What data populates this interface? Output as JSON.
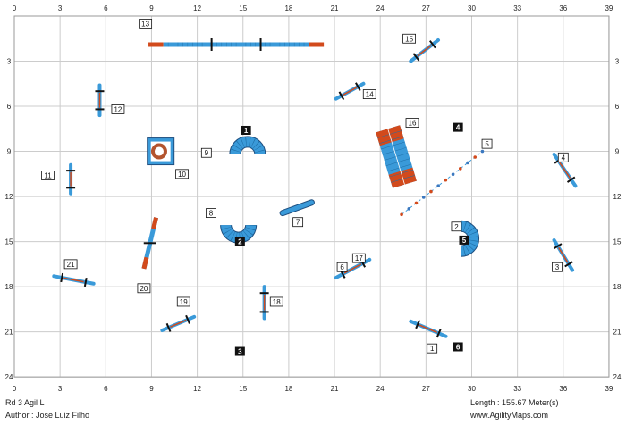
{
  "course": {
    "title": "Rd 3 Agil L",
    "author": "Author : Jose Luiz Filho",
    "length": "Length : 155.67 Meter(s)",
    "website": "www.AgilityMaps.com"
  },
  "axes": {
    "x_max": 39,
    "y_max": 24,
    "x_ticks": [
      {
        "v": 0,
        "label": "0"
      },
      {
        "v": 3,
        "label": "3"
      },
      {
        "v": 6,
        "label": "6"
      },
      {
        "v": 9,
        "label": "9"
      },
      {
        "v": 12,
        "label": "12"
      },
      {
        "v": 15,
        "label": "15"
      },
      {
        "v": 18,
        "label": "18"
      },
      {
        "v": 21,
        "label": "21"
      },
      {
        "v": 24,
        "label": "24"
      },
      {
        "v": 27,
        "label": "27"
      },
      {
        "v": 30,
        "label": "30"
      },
      {
        "v": 33,
        "label": "33"
      },
      {
        "v": 36,
        "label": "36"
      },
      {
        "v": 39,
        "label": "39"
      }
    ],
    "y_ticks": [
      {
        "v": 0,
        "label": ""
      },
      {
        "v": 3,
        "label": "3"
      },
      {
        "v": 6,
        "label": "6"
      },
      {
        "v": 9,
        "label": "9"
      },
      {
        "v": 12,
        "label": "12"
      },
      {
        "v": 15,
        "label": "15"
      },
      {
        "v": 18,
        "label": "18"
      },
      {
        "v": 21,
        "label": "21"
      },
      {
        "v": 24,
        "label": "24"
      }
    ]
  },
  "colors": {
    "obstacle_blue": "#3a9ad9",
    "contact_red": "#d24a1c",
    "grid": "#cccccc",
    "black": "#111111"
  },
  "obstacles": [
    {
      "id": "jump-1",
      "type": "jump",
      "x1": 26.0,
      "y1": 20.3,
      "x2": 28.3,
      "y2": 21.3
    },
    {
      "id": "jump-3",
      "type": "jump",
      "x1": 35.4,
      "y1": 14.9,
      "x2": 36.6,
      "y2": 16.9
    },
    {
      "id": "jump-4",
      "type": "jump",
      "x1": 35.4,
      "y1": 9.2,
      "x2": 36.8,
      "y2": 11.3
    },
    {
      "id": "jump-6",
      "type": "jump",
      "x1": 21.1,
      "y1": 17.4,
      "x2": 23.3,
      "y2": 16.2
    },
    {
      "id": "jump-11",
      "type": "jump",
      "x1": 3.7,
      "y1": 9.9,
      "x2": 3.7,
      "y2": 11.8
    },
    {
      "id": "jump-12",
      "type": "jump",
      "x1": 5.6,
      "y1": 4.6,
      "x2": 5.6,
      "y2": 6.6
    },
    {
      "id": "jump-14",
      "type": "jump",
      "x1": 21.1,
      "y1": 5.5,
      "x2": 22.9,
      "y2": 4.5
    },
    {
      "id": "jump-15",
      "type": "jump",
      "x1": 26.0,
      "y1": 3.0,
      "x2": 27.8,
      "y2": 1.6
    },
    {
      "id": "jump-18",
      "type": "jump",
      "x1": 16.4,
      "y1": 18.0,
      "x2": 16.4,
      "y2": 20.1
    },
    {
      "id": "jump-19",
      "type": "jump",
      "x1": 9.7,
      "y1": 20.9,
      "x2": 11.8,
      "y2": 20.0
    },
    {
      "id": "jump-21",
      "type": "jump",
      "x1": 2.6,
      "y1": 17.3,
      "x2": 5.2,
      "y2": 17.8
    }
  ],
  "dogwalk": {
    "x1": 8.8,
    "x2": 20.3,
    "y": 1.9
  },
  "aframe": {
    "x1": 24.5,
    "y1": 7.5,
    "x2": 25.6,
    "y2": 11.2
  },
  "seesaw": {
    "x1": 9.3,
    "y1": 13.4,
    "x2": 8.5,
    "y2": 16.8
  },
  "table": {
    "x": 9.6,
    "y": 9.0
  },
  "tire": {
    "x": 9.5,
    "y": 9.0
  },
  "weave": {
    "x1": 25.4,
    "y1": 13.2,
    "x2": 30.7,
    "y2": 9.0
  },
  "pipe": {
    "x1": 17.6,
    "y1": 13.1,
    "x2": 19.5,
    "y2": 12.4
  },
  "tunnels": [
    {
      "id": "tunnel-top",
      "cx": 15.3,
      "cy": 9.2,
      "orient": "up"
    },
    {
      "id": "tunnel-mid",
      "cx": 14.7,
      "cy": 13.9,
      "orient": "down"
    },
    {
      "id": "tunnel-right",
      "cx": 29.3,
      "cy": 14.8,
      "orient": "right"
    }
  ],
  "labels": [
    {
      "id": "1",
      "text": "1",
      "x": 27.4,
      "y": 22.1,
      "style": "box"
    },
    {
      "id": "2",
      "text": "2",
      "x": 29.0,
      "y": 14.0,
      "style": "box"
    },
    {
      "id": "3",
      "text": "3",
      "x": 35.6,
      "y": 16.7,
      "style": "box"
    },
    {
      "id": "4",
      "text": "4",
      "x": 36.0,
      "y": 9.4,
      "style": "box"
    },
    {
      "id": "5",
      "text": "5",
      "x": 31.0,
      "y": 8.5,
      "style": "box"
    },
    {
      "id": "6",
      "text": "6",
      "x": 21.5,
      "y": 16.7,
      "style": "box"
    },
    {
      "id": "7",
      "text": "7",
      "x": 18.6,
      "y": 13.7,
      "style": "box"
    },
    {
      "id": "8",
      "text": "8",
      "x": 12.9,
      "y": 13.1,
      "style": "box"
    },
    {
      "id": "9",
      "text": "9",
      "x": 12.6,
      "y": 9.1,
      "style": "box"
    },
    {
      "id": "10",
      "text": "10",
      "x": 11.0,
      "y": 10.5,
      "style": "box"
    },
    {
      "id": "11",
      "text": "11",
      "x": 2.2,
      "y": 10.6,
      "style": "box"
    },
    {
      "id": "12",
      "text": "12",
      "x": 6.8,
      "y": 6.2,
      "style": "box"
    },
    {
      "id": "13",
      "text": "13",
      "x": 8.6,
      "y": 0.5,
      "style": "box"
    },
    {
      "id": "14",
      "text": "14",
      "x": 23.3,
      "y": 5.2,
      "style": "box"
    },
    {
      "id": "15",
      "text": "15",
      "x": 25.9,
      "y": 1.5,
      "style": "box"
    },
    {
      "id": "16",
      "text": "16",
      "x": 26.1,
      "y": 7.1,
      "style": "box"
    },
    {
      "id": "17",
      "text": "17",
      "x": 22.6,
      "y": 16.1,
      "style": "box"
    },
    {
      "id": "18",
      "text": "18",
      "x": 17.2,
      "y": 19.0,
      "style": "box"
    },
    {
      "id": "19",
      "text": "19",
      "x": 11.1,
      "y": 19.0,
      "style": "box"
    },
    {
      "id": "20",
      "text": "20",
      "x": 8.5,
      "y": 18.1,
      "style": "box"
    },
    {
      "id": "21",
      "text": "21",
      "x": 3.7,
      "y": 16.5,
      "style": "box"
    },
    {
      "id": "n1",
      "text": "1",
      "x": 15.2,
      "y": 7.6,
      "style": "dark"
    },
    {
      "id": "n2",
      "text": "2",
      "x": 14.8,
      "y": 15.0,
      "style": "dark"
    },
    {
      "id": "n3",
      "text": "3",
      "x": 14.8,
      "y": 22.3,
      "style": "dark"
    },
    {
      "id": "n4",
      "text": "4",
      "x": 29.1,
      "y": 7.4,
      "style": "dark"
    },
    {
      "id": "n5",
      "text": "5",
      "x": 29.5,
      "y": 14.9,
      "style": "dark"
    },
    {
      "id": "n6",
      "text": "6",
      "x": 29.1,
      "y": 22.0,
      "style": "dark"
    }
  ]
}
